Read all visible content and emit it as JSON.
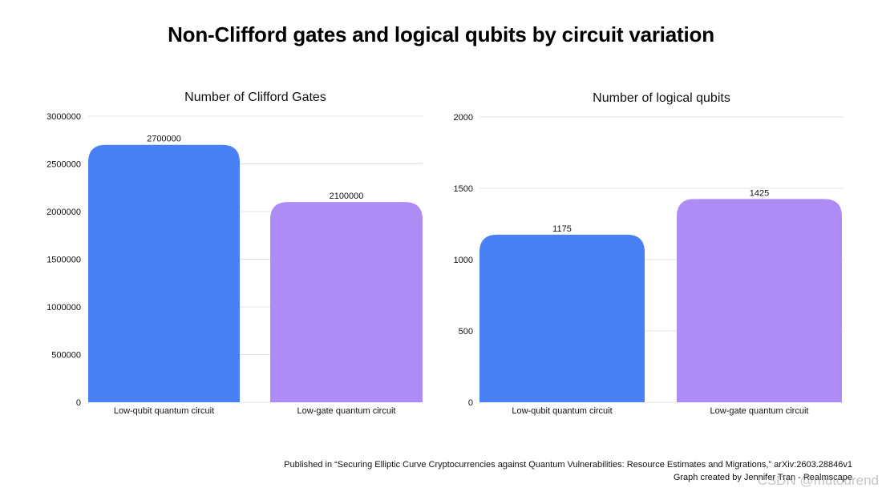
{
  "title": "Non-Clifford gates and logical qubits by circuit variation",
  "chart_data": [
    {
      "type": "bar",
      "title": "Number of Clifford Gates",
      "categories": [
        "Low-qubit quantum circuit",
        "Low-gate quantum circuit"
      ],
      "values": [
        2700000,
        2100000
      ],
      "value_labels": [
        "2700000",
        "2100000"
      ],
      "colors": [
        "#4a80f5",
        "#ad8cf5"
      ],
      "ylim": [
        0,
        3000000
      ],
      "yticks": [
        0,
        500000,
        1000000,
        1500000,
        2000000,
        2500000,
        3000000
      ],
      "ytick_labels": [
        "0",
        "500000",
        "1000000",
        "1500000",
        "2000000",
        "2500000",
        "3000000"
      ],
      "grid": true,
      "xlabel": "",
      "ylabel": ""
    },
    {
      "type": "bar",
      "title": "Number of logical qubits",
      "categories": [
        "Low-qubit quantum circuit",
        "Low-gate quantum circuit"
      ],
      "values": [
        1175,
        1425
      ],
      "value_labels": [
        "1175",
        "1425"
      ],
      "colors": [
        "#4a80f5",
        "#ad8cf5"
      ],
      "ylim": [
        0,
        2000
      ],
      "yticks": [
        0,
        500,
        1000,
        1500,
        2000
      ],
      "ytick_labels": [
        "0",
        "500",
        "1000",
        "1500",
        "2000"
      ],
      "grid": true,
      "xlabel": "",
      "ylabel": ""
    }
  ],
  "footer": {
    "citation": "Published in “Securing Elliptic Curve Cryptocurrencies against Quantum Vulnerabilities: Resource Estimates and Migrations,” arXiv:2603.28846v1",
    "credit": "Graph created by Jennifer Tran - Realmscape"
  },
  "watermark": "CSDN @mutourend"
}
